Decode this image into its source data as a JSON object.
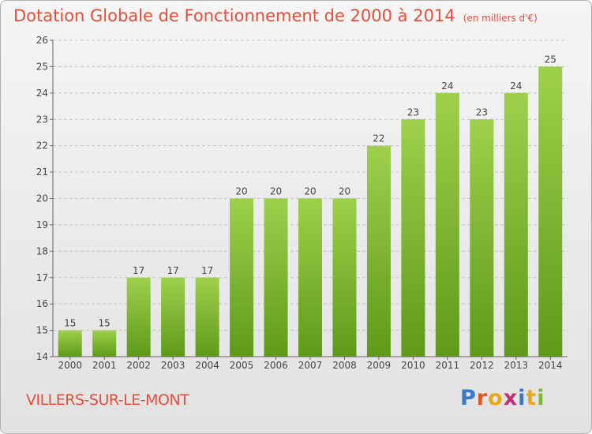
{
  "title": "Dotation Globale de Fonctionnement de 2000 à 2014",
  "unit": "(en milliers d'€)",
  "commune": "VILLERS-SUR-LE-MONT",
  "logo_text": "Proxiti",
  "colors": {
    "title": "#e0503d",
    "bar_top": "#9ed04c",
    "bar_bottom": "#5e9a18",
    "logo": [
      "#3a7ac4",
      "#e05a28",
      "#e8a818",
      "#c03070",
      "#3a7ac4",
      "#e8a818",
      "#79b83a"
    ]
  },
  "chart_data": {
    "type": "bar",
    "categories": [
      "2000",
      "2001",
      "2002",
      "2003",
      "2004",
      "2005",
      "2006",
      "2007",
      "2008",
      "2009",
      "2010",
      "2011",
      "2012",
      "2013",
      "2014"
    ],
    "values": [
      15,
      15,
      17,
      17,
      17,
      20,
      20,
      20,
      20,
      22,
      23,
      24,
      23,
      24,
      25
    ],
    "ylim": [
      14,
      26
    ],
    "yticks": [
      14,
      15,
      16,
      17,
      18,
      19,
      20,
      21,
      22,
      23,
      24,
      25,
      26
    ],
    "xlabel": "",
    "ylabel": "",
    "grid": true,
    "data_labels": true
  }
}
